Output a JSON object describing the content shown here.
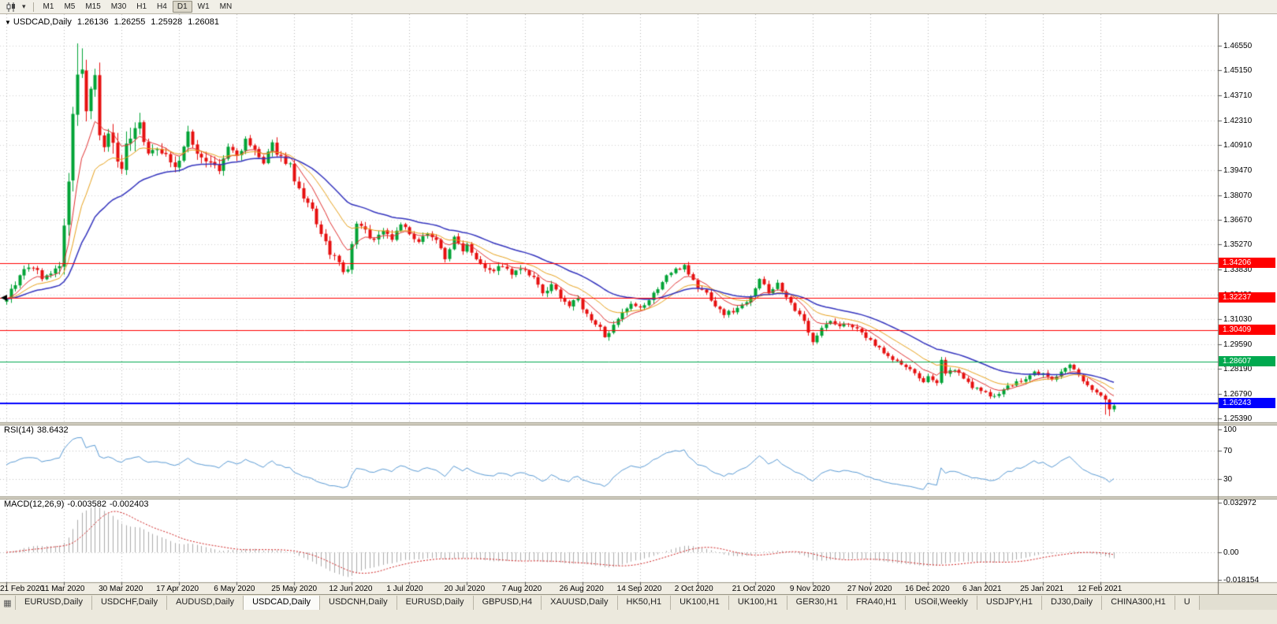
{
  "toolbar": {
    "timeframes": [
      "M1",
      "M5",
      "M15",
      "M30",
      "H1",
      "H4",
      "D1",
      "W1",
      "MN"
    ],
    "active_timeframe": "D1"
  },
  "chart": {
    "symbol_label": "USDCAD,Daily",
    "ohlc": {
      "open": "1.26136",
      "high": "1.26255",
      "low": "1.25928",
      "close": "1.26081"
    },
    "price_axis_labels": [
      "1.46550",
      "1.45150",
      "1.43710",
      "1.42310",
      "1.40910",
      "1.39470",
      "1.38070",
      "1.36670",
      "1.35270",
      "1.33830",
      "1.32430",
      "1.31030",
      "1.29590",
      "1.28190",
      "1.26790",
      "1.25390"
    ],
    "date_labels": [
      "21 Feb 2020",
      "11 Mar 2020",
      "30 Mar 2020",
      "17 Apr 2020",
      "6 May 2020",
      "25 May 2020",
      "12 Jun 2020",
      "1 Jul 2020",
      "20 Jul 2020",
      "7 Aug 2020",
      "26 Aug 2020",
      "14 Sep 2020",
      "2 Oct 2020",
      "21 Oct 2020",
      "9 Nov 2020",
      "27 Nov 2020",
      "16 Dec 2020",
      "6 Jan 2021",
      "25 Jan 2021",
      "12 Feb 2021"
    ],
    "hlines": [
      {
        "label": "1.34206",
        "price": 1.34206,
        "color": "#FF0000",
        "line_width": 1
      },
      {
        "label": "1.32237",
        "price": 1.32237,
        "color": "#FF0000",
        "line_width": 1,
        "marker": true
      },
      {
        "label": "1.30409",
        "price": 1.30409,
        "color": "#FF0000",
        "line_width": 1
      },
      {
        "label": "1.28607",
        "price": 1.28607,
        "color": "#00A94F",
        "line_width": 1
      },
      {
        "label": "1.26243",
        "price": 1.26243,
        "color": "#0000FF",
        "line_width": 2
      }
    ]
  },
  "rsi": {
    "name": "RSI(14)",
    "value": "38.6432",
    "axis_labels": [
      "100",
      "70",
      "30"
    ],
    "levels": [
      70,
      30
    ]
  },
  "macd": {
    "name": "MACD(12,26,9)",
    "value_main": "-0.003582",
    "value_signal": "-0.002403",
    "axis_labels": [
      "0.032972",
      "0.00",
      "-0.018154"
    ]
  },
  "tabbar": {
    "items": [
      "EURUSD,Daily",
      "USDCHF,Daily",
      "AUDUSD,Daily",
      "USDCAD,Daily",
      "USDCNH,Daily",
      "EURUSD,Daily",
      "GBPUSD,H4",
      "XAUUSD,Daily",
      "HK50,H1",
      "UK100,H1",
      "UK100,H1",
      "GER30,H1",
      "FRA40,H1",
      "USOil,Weekly",
      "USDJPY,H1",
      "DJ30,Daily",
      "CHINA300,H1",
      "U"
    ],
    "active_index": 3
  },
  "chart_data": {
    "type": "candlestick",
    "symbol": "USDCAD",
    "period": "Daily",
    "days": 251,
    "seed": 9,
    "x_tick_interval_days": 13,
    "price_axis_range": {
      "min": 1.2539,
      "max": 1.4655
    },
    "last_ohlc": {
      "open": 1.26136,
      "high": 1.26255,
      "low": 1.25928,
      "close": 1.26081
    },
    "horizontal_levels": [
      1.34206,
      1.32237,
      1.30409,
      1.28607,
      1.26243
    ],
    "rsi_axis": [
      100,
      70,
      30
    ],
    "rsi_last": 38.6432,
    "macd_axis": {
      "max": 0.032972,
      "zero": 0.0,
      "min": -0.018154
    },
    "macd_last_main": -0.003582,
    "macd_last_signal": -0.002403,
    "colors": {
      "up": "#00A335",
      "down": "#E60F0F",
      "rsi": "#5A9BD5",
      "macd_hist": "#ABABAB",
      "macd_signal": "#D02020"
    },
    "moving_averages": [
      {
        "period": 8,
        "color": "#E23232",
        "width": 1
      },
      {
        "period": 16,
        "color": "#E8A21C",
        "width": 1
      },
      {
        "period": 32,
        "color": "#3434BE",
        "width": 1.5
      }
    ],
    "volatility_zones": [
      [
        0,
        11,
        0.004
      ],
      [
        12,
        30,
        0.011
      ],
      [
        31,
        64,
        0.0056
      ],
      [
        65,
        90,
        0.0046
      ],
      [
        91,
        134,
        0.0036
      ],
      [
        135,
        181,
        0.0034
      ],
      [
        182,
        250,
        0.0028
      ]
    ],
    "forced_extremes": [
      {
        "day": 16,
        "high": 1.4668
      },
      {
        "day": 17,
        "high": 1.464
      },
      {
        "day": 248,
        "low": 1.256
      },
      {
        "day": 249,
        "low": 1.2552
      }
    ],
    "price_anchors": [
      [
        0,
        1.3225
      ],
      [
        2,
        1.3305
      ],
      [
        4,
        1.338
      ],
      [
        6,
        1.34
      ],
      [
        8,
        1.334
      ],
      [
        10,
        1.3355
      ],
      [
        12,
        1.342
      ],
      [
        13,
        1.36
      ],
      [
        14,
        1.39
      ],
      [
        15,
        1.425
      ],
      [
        16,
        1.448
      ],
      [
        17,
        1.453
      ],
      [
        18,
        1.428
      ],
      [
        19,
        1.438
      ],
      [
        20,
        1.446
      ],
      [
        21,
        1.415
      ],
      [
        22,
        1.405
      ],
      [
        23,
        1.418
      ],
      [
        24,
        1.409
      ],
      [
        25,
        1.401
      ],
      [
        26,
        1.399
      ],
      [
        28,
        1.415
      ],
      [
        30,
        1.422
      ],
      [
        32,
        1.403
      ],
      [
        34,
        1.408
      ],
      [
        36,
        1.404
      ],
      [
        38,
        1.396
      ],
      [
        39,
        1.401
      ],
      [
        41,
        1.415
      ],
      [
        42,
        1.409
      ],
      [
        44,
        1.402
      ],
      [
        46,
        1.399
      ],
      [
        48,
        1.394
      ],
      [
        50,
        1.408
      ],
      [
        52,
        1.403
      ],
      [
        54,
        1.411
      ],
      [
        56,
        1.406
      ],
      [
        58,
        1.398
      ],
      [
        60,
        1.409
      ],
      [
        62,
        1.402
      ],
      [
        64,
        1.398
      ],
      [
        65,
        1.388
      ],
      [
        67,
        1.378
      ],
      [
        69,
        1.372
      ],
      [
        71,
        1.358
      ],
      [
        73,
        1.348
      ],
      [
        75,
        1.342
      ],
      [
        76,
        1.336
      ],
      [
        77,
        1.339
      ],
      [
        79,
        1.365
      ],
      [
        81,
        1.36
      ],
      [
        83,
        1.355
      ],
      [
        85,
        1.361
      ],
      [
        87,
        1.356
      ],
      [
        89,
        1.365
      ],
      [
        91,
        1.358
      ],
      [
        93,
        1.353
      ],
      [
        95,
        1.36
      ],
      [
        97,
        1.355
      ],
      [
        99,
        1.345
      ],
      [
        101,
        1.356
      ],
      [
        103,
        1.35
      ],
      [
        104,
        1.353
      ],
      [
        106,
        1.345
      ],
      [
        108,
        1.34
      ],
      [
        110,
        1.338
      ],
      [
        112,
        1.341
      ],
      [
        114,
        1.335
      ],
      [
        116,
        1.339
      ],
      [
        117,
        1.337
      ],
      [
        119,
        1.333
      ],
      [
        121,
        1.325
      ],
      [
        123,
        1.329
      ],
      [
        125,
        1.323
      ],
      [
        127,
        1.318
      ],
      [
        129,
        1.322
      ],
      [
        130,
        1.316
      ],
      [
        132,
        1.309
      ],
      [
        134,
        1.305
      ],
      [
        135,
        1.301
      ],
      [
        137,
        1.306
      ],
      [
        139,
        1.313
      ],
      [
        141,
        1.318
      ],
      [
        143,
        1.316
      ],
      [
        145,
        1.321
      ],
      [
        147,
        1.328
      ],
      [
        149,
        1.335
      ],
      [
        151,
        1.338
      ],
      [
        153,
        1.341
      ],
      [
        155,
        1.332
      ],
      [
        156,
        1.328
      ],
      [
        158,
        1.325
      ],
      [
        160,
        1.318
      ],
      [
        162,
        1.313
      ],
      [
        164,
        1.315
      ],
      [
        166,
        1.318
      ],
      [
        168,
        1.324
      ],
      [
        170,
        1.333
      ],
      [
        172,
        1.325
      ],
      [
        174,
        1.331
      ],
      [
        176,
        1.322
      ],
      [
        178,
        1.315
      ],
      [
        180,
        1.309
      ],
      [
        182,
        1.298
      ],
      [
        184,
        1.305
      ],
      [
        186,
        1.309
      ],
      [
        188,
        1.306
      ],
      [
        190,
        1.308
      ],
      [
        192,
        1.304
      ],
      [
        194,
        1.3
      ],
      [
        195,
        1.298
      ],
      [
        197,
        1.294
      ],
      [
        199,
        1.289
      ],
      [
        201,
        1.286
      ],
      [
        203,
        1.283
      ],
      [
        205,
        1.279
      ],
      [
        207,
        1.275
      ],
      [
        208,
        1.277
      ],
      [
        210,
        1.273
      ],
      [
        211,
        1.288
      ],
      [
        212,
        1.28
      ],
      [
        214,
        1.282
      ],
      [
        216,
        1.276
      ],
      [
        218,
        1.272
      ],
      [
        220,
        1.269
      ],
      [
        222,
        1.267
      ],
      [
        224,
        1.268
      ],
      [
        226,
        1.272
      ],
      [
        228,
        1.274
      ],
      [
        230,
        1.276
      ],
      [
        232,
        1.28
      ],
      [
        234,
        1.279
      ],
      [
        236,
        1.276
      ],
      [
        238,
        1.28
      ],
      [
        240,
        1.284
      ],
      [
        242,
        1.278
      ],
      [
        244,
        1.273
      ],
      [
        246,
        1.269
      ],
      [
        248,
        1.264
      ],
      [
        249,
        1.26
      ],
      [
        250,
        1.2608
      ]
    ]
  }
}
